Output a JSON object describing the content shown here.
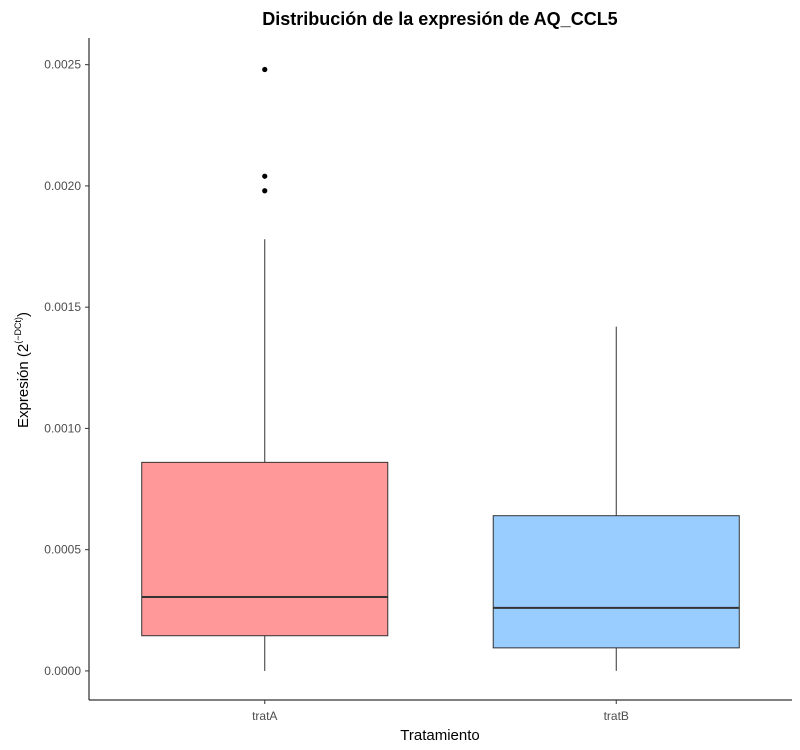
{
  "chart_data": {
    "type": "box",
    "title": "Distribución de la expresión de AQ_CCL5",
    "xlabel": "Tratamiento",
    "ylabel": {
      "base": "Expresión (2",
      "superscript": "(−DCt)",
      "close": ")"
    },
    "ylim": [
      -0.00012,
      0.00261
    ],
    "yticks": [
      0.0,
      0.0005,
      0.001,
      0.0015,
      0.002,
      0.0025
    ],
    "ytick_labels": [
      "0.0000",
      "0.0005",
      "0.0010",
      "0.0015",
      "0.0020",
      "0.0025"
    ],
    "categories": [
      "tratA",
      "tratB"
    ],
    "grid": false,
    "legend": "none",
    "boxes": [
      {
        "category": "tratA",
        "min": 0.0,
        "q1": 0.000145,
        "median": 0.000305,
        "q3": 0.00086,
        "max": 0.00178,
        "outliers": [
          0.00248,
          0.00204,
          0.00198
        ],
        "color": "#FF9999"
      },
      {
        "category": "tratB",
        "min": 0.0,
        "q1": 9.5e-05,
        "median": 0.00026,
        "q3": 0.00064,
        "max": 0.00142,
        "outliers": [],
        "color": "#99CCFF"
      }
    ]
  }
}
